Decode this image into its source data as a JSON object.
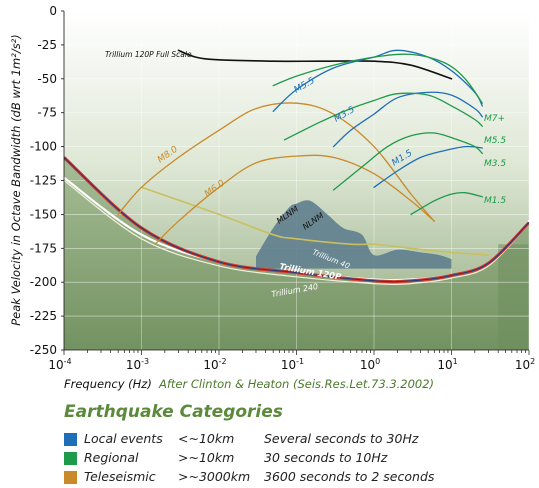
{
  "chart_data": {
    "type": "line",
    "ylabel": "Peak Velocity in Octave Bandwidth (dB wrt 1m²/s²)",
    "xlabel": "Frequency (Hz)",
    "source_note": "After Clinton & Heaton (Seis.Res.Let.73.3.2002)",
    "x_scale": "log",
    "xlim": [
      0.0001,
      100
    ],
    "ylim": [
      -250,
      0
    ],
    "y_ticks": [
      0,
      -25,
      -50,
      -75,
      -100,
      -125,
      -150,
      -175,
      -200,
      -225,
      -250
    ],
    "y_tick_labels": [
      "0",
      "-25",
      "-50",
      "-75",
      "-100",
      "-125",
      "-150",
      "-175",
      "-200",
      "-225",
      "-250"
    ],
    "x_ticks": [
      0.0001,
      0.001,
      0.01,
      0.1,
      1,
      10,
      100
    ],
    "x_tick_base": "10",
    "x_tick_exponents": [
      "-4",
      "-3",
      "-2",
      "-1",
      "0",
      "1",
      "2"
    ],
    "colors": {
      "local": "#1f6fb8",
      "regional": "#1e9a4a",
      "teleseismic": "#c98a2a",
      "nlnm": "#d83a2a",
      "nlnm_inner": "#2a3a7a",
      "trillium40": "#c8c060",
      "trillium120": "#ffffff",
      "trillium240": "#f4f0dc",
      "fullscale": "#111111",
      "band": "#5f7e8e"
    },
    "series": [
      {
        "name": "Trillium 120P Full Scale",
        "color": "#111111",
        "x": [
          0.003,
          0.005,
          0.01,
          0.05,
          0.2,
          1,
          3,
          10
        ],
        "y": [
          -29,
          -34,
          -36,
          -37,
          -37,
          -37,
          -40,
          -50
        ]
      },
      {
        "name": "Trillium 40",
        "color": "#c8c060",
        "x": [
          0.001,
          0.01,
          0.05,
          0.1,
          0.5,
          1,
          3,
          10,
          30
        ],
        "y": [
          -130,
          -150,
          -165,
          -168,
          -172,
          -172,
          -175,
          -178,
          -180
        ]
      },
      {
        "name": "Trillium 120P",
        "color": "#ffffff",
        "x": [
          0.0001,
          0.001,
          0.01,
          0.1,
          1,
          3,
          10,
          30,
          100
        ],
        "y": [
          -123,
          -165,
          -185,
          -193,
          -198,
          -198,
          -195,
          -186,
          -155
        ]
      },
      {
        "name": "Trillium 240",
        "color": "#f4f0dc",
        "x": [
          0.0001,
          0.001,
          0.01,
          0.1,
          1,
          3,
          10,
          30,
          100
        ],
        "y": [
          -125,
          -168,
          -188,
          -196,
          -201,
          -201,
          -197,
          -188,
          -157
        ]
      },
      {
        "name": "NLNM",
        "color": "#d83a2a",
        "x": [
          0.0001,
          0.001,
          0.01,
          0.1,
          1,
          3,
          10,
          30,
          100
        ],
        "y": [
          -108,
          -160,
          -185,
          -193,
          -199,
          -199,
          -195,
          -186,
          -156
        ]
      },
      {
        "name": "M8.0",
        "color": "#c98a2a",
        "x": [
          0.0005,
          0.001,
          0.003,
          0.01,
          0.03,
          0.1,
          0.3,
          1,
          3,
          6
        ],
        "y": [
          -150,
          -130,
          -108,
          -88,
          -72,
          -68,
          -76,
          -100,
          -135,
          -155
        ]
      },
      {
        "name": "M6.0",
        "color": "#c98a2a",
        "x": [
          0.0015,
          0.003,
          0.01,
          0.03,
          0.1,
          0.3,
          1,
          3,
          6
        ],
        "y": [
          -172,
          -155,
          -130,
          -112,
          -107,
          -108,
          -120,
          -140,
          -155
        ]
      },
      {
        "name": "M5.5",
        "color": "#1f6fb8",
        "x": [
          0.05,
          0.1,
          0.3,
          1,
          2,
          5,
          10,
          20,
          25
        ],
        "y": [
          -74,
          -58,
          -42,
          -34,
          -29,
          -34,
          -44,
          -60,
          -70
        ]
      },
      {
        "name": "M3.5",
        "color": "#1f6fb8",
        "x": [
          0.3,
          0.5,
          1,
          2,
          5,
          10,
          20,
          25
        ],
        "y": [
          -100,
          -88,
          -76,
          -64,
          -60,
          -62,
          -72,
          -78
        ]
      },
      {
        "name": "M1.5",
        "color": "#1f6fb8",
        "x": [
          1,
          2,
          4,
          8,
          15,
          25
        ],
        "y": [
          -130,
          -118,
          -108,
          -103,
          -100,
          -101
        ]
      },
      {
        "name": "M7+",
        "color": "#1e9a4a",
        "x": [
          0.05,
          0.1,
          0.3,
          1,
          3,
          8,
          15,
          25
        ],
        "y": [
          -55,
          -48,
          -40,
          -34,
          -32,
          -38,
          -50,
          -68
        ]
      },
      {
        "name": "M5.5",
        "color": "#1e9a4a",
        "x": [
          0.07,
          0.2,
          0.5,
          1,
          2,
          5,
          10,
          20,
          25
        ],
        "y": [
          -95,
          -82,
          -72,
          -66,
          -61,
          -62,
          -70,
          -80,
          -85
        ]
      },
      {
        "name": "M3.5",
        "color": "#1e9a4a",
        "x": [
          0.3,
          0.7,
          1.5,
          3,
          6,
          12,
          20,
          25
        ],
        "y": [
          -132,
          -115,
          -100,
          -92,
          -90,
          -95,
          -100,
          -105
        ]
      },
      {
        "name": "M1.5",
        "color": "#1e9a4a",
        "x": [
          3,
          6,
          10,
          15,
          25
        ],
        "y": [
          -150,
          -140,
          -135,
          -134,
          -137
        ]
      },
      {
        "name": "MLNM",
        "color": "#5f7e8e",
        "x": [
          0.03,
          0.05,
          0.08,
          0.1,
          0.15,
          0.25,
          0.4,
          0.7,
          1,
          2,
          4,
          7,
          10
        ],
        "y": [
          -181,
          -160,
          -145,
          -142,
          -140,
          -150,
          -160,
          -165,
          -180,
          -176,
          -178,
          -180,
          -183
        ]
      }
    ],
    "curve_labels": [
      {
        "text": "Trillium 120P Full Scale",
        "color": "#111111"
      },
      {
        "text": "M5.5",
        "color": "#1f6fb8"
      },
      {
        "text": "M3.5",
        "color": "#1f6fb8"
      },
      {
        "text": "M1.5",
        "color": "#1f6fb8"
      },
      {
        "text": "M8.0",
        "color": "#c98a2a"
      },
      {
        "text": "M6.0",
        "color": "#c98a2a"
      },
      {
        "text": "MLNM",
        "color": "#111111"
      },
      {
        "text": "NLNM",
        "color": "#111111"
      },
      {
        "text": "Trillium 40",
        "color": "#ffffff"
      },
      {
        "text": "Trillium 120P",
        "color": "#ffffff"
      },
      {
        "text": "Trillium 240",
        "color": "#ffffff"
      },
      {
        "text": "M7+",
        "color": "#1e9a4a"
      },
      {
        "text": "M5.5",
        "color": "#1e9a4a"
      },
      {
        "text": "M3.5",
        "color": "#1e9a4a"
      },
      {
        "text": "M1.5",
        "color": "#1e9a4a"
      }
    ]
  },
  "legend": {
    "title": "Earthquake Categories",
    "rows": [
      {
        "color": "#1f6fb8",
        "label": "Local events",
        "distance": "<~10km",
        "periods": "Several seconds to 30Hz"
      },
      {
        "color": "#1e9a4a",
        "label": "Regional",
        "distance": ">~10km",
        "periods": "30 seconds to 10Hz"
      },
      {
        "color": "#c98a2a",
        "label": "Teleseismic",
        "distance": ">~3000km",
        "periods": "3600 seconds to 2 seconds"
      }
    ]
  }
}
